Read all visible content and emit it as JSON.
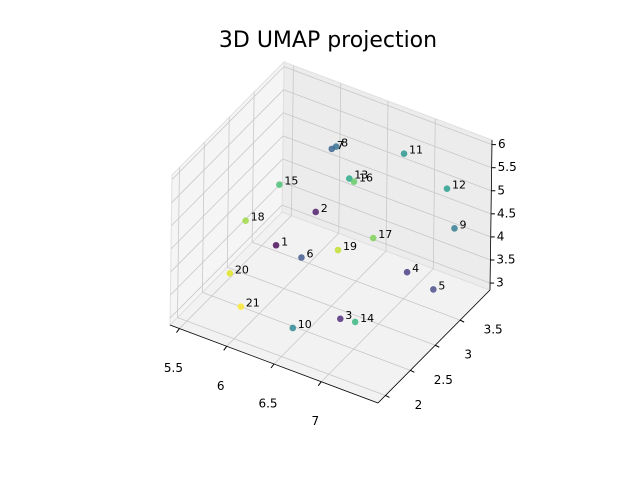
{
  "chart_data": {
    "type": "scatter3d",
    "title": "3D UMAP projection",
    "labels": [
      "1",
      "2",
      "3",
      "4",
      "5",
      "6",
      "7",
      "8",
      "9",
      "10",
      "11",
      "12",
      "13",
      "14",
      "15",
      "16",
      "17",
      "18",
      "19",
      "20",
      "21"
    ],
    "x": [
      6.04,
      6.22,
      6.84,
      7.19,
      7.35,
      6.19,
      6.38,
      6.4,
      7.45,
      6.46,
      6.79,
      7.19,
      6.45,
      6.94,
      6.18,
      6.5,
      6.71,
      5.83,
      6.46,
      5.79,
      5.91
    ],
    "y": [
      2.75,
      3.2,
      2.53,
      3.2,
      3.43,
      2.98,
      3.2,
      3.25,
      3.65,
      2.3,
      3.88,
      3.99,
      3.43,
      2.64,
      2.53,
      3.43,
      3.43,
      2.53,
      3.2,
      2.3,
      2.3
    ],
    "z": [
      4.09,
      4.46,
      3.35,
      3.9,
      3.4,
      3.69,
      5.95,
      5.96,
      4.56,
      3.11,
      5.42,
      4.85,
      5.11,
      3.24,
      5.75,
      5.08,
      4.02,
      4.7,
      3.82,
      3.78,
      3.15
    ],
    "colors": [
      "#440154",
      "#471365",
      "#482475",
      "#463480",
      "#414487",
      "#3b528b",
      "#355f8d",
      "#2f6c8e",
      "#2a788e",
      "#25848e",
      "#21918c",
      "#1e9c89",
      "#22a884",
      "#2fb47c",
      "#44bf70",
      "#5ec962",
      "#7ad151",
      "#9bd93c",
      "#bddf26",
      "#dfe318",
      "#fde725"
    ],
    "xlim": [
      5.4,
      7.6
    ],
    "ylim": [
      1.85,
      4.1
    ],
    "zlim": [
      2.85,
      6.1
    ],
    "xticks": [
      5.5,
      6.0,
      6.5,
      7.0
    ],
    "yticks": [
      2.0,
      2.5,
      3.0,
      3.5
    ],
    "zticks": [
      3.0,
      3.5,
      4.0,
      4.5,
      5.0,
      5.5,
      6.0
    ],
    "grid": true
  }
}
